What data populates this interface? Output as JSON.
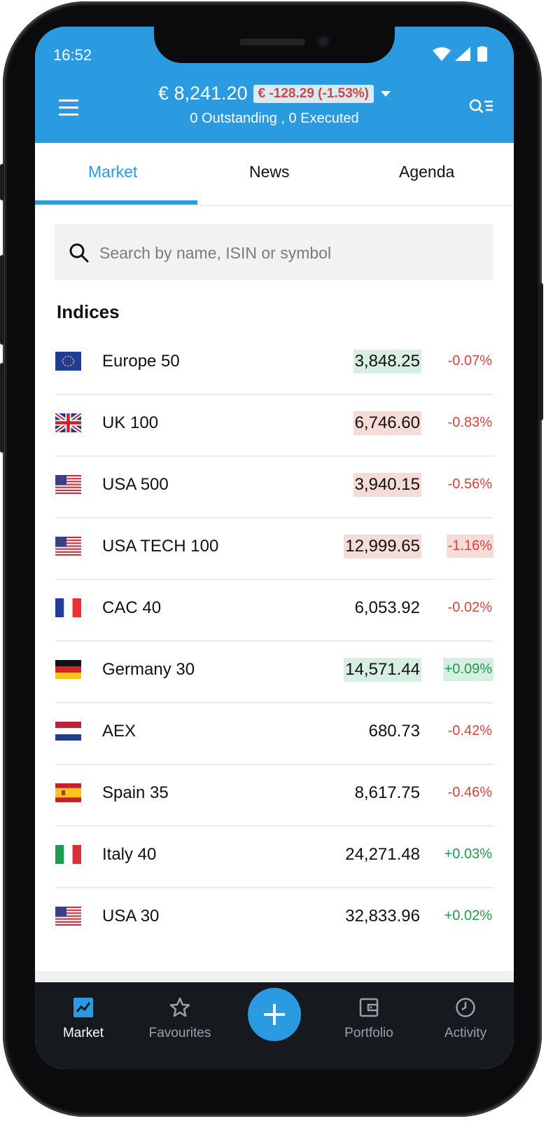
{
  "status_bar": {
    "time": "16:52"
  },
  "header": {
    "balance": "€ 8,241.20",
    "pl_badge": "€ -128.29 (-1.53%)",
    "orders_summary": "0 Outstanding , 0 Executed"
  },
  "tabs": [
    {
      "label": "Market",
      "active": true
    },
    {
      "label": "News",
      "active": false
    },
    {
      "label": "Agenda",
      "active": false
    }
  ],
  "search": {
    "placeholder": "Search by name, ISIN or symbol",
    "value": ""
  },
  "indices": {
    "title": "Indices",
    "rows": [
      {
        "name": "Europe 50",
        "flag": "eu-flag",
        "price": "3,848.25",
        "change": "-0.07%",
        "price_bg": "up",
        "change_bg": "none",
        "direction": "neg"
      },
      {
        "name": "UK 100",
        "flag": "uk-flag",
        "price": "6,746.60",
        "change": "-0.83%",
        "price_bg": "down",
        "change_bg": "none",
        "direction": "neg"
      },
      {
        "name": "USA 500",
        "flag": "us-flag",
        "price": "3,940.15",
        "change": "-0.56%",
        "price_bg": "down",
        "change_bg": "none",
        "direction": "neg"
      },
      {
        "name": "USA TECH 100",
        "flag": "us-flag",
        "price": "12,999.65",
        "change": "-1.16%",
        "price_bg": "down",
        "change_bg": "down",
        "direction": "neg"
      },
      {
        "name": "CAC 40",
        "flag": "france-flag",
        "price": "6,053.92",
        "change": "-0.02%",
        "price_bg": "none",
        "change_bg": "none",
        "direction": "neg"
      },
      {
        "name": "Germany 30",
        "flag": "germany-flag",
        "price": "14,571.44",
        "change": "+0.09%",
        "price_bg": "up",
        "change_bg": "up",
        "direction": "pos"
      },
      {
        "name": "AEX",
        "flag": "netherlands-flag",
        "price": "680.73",
        "change": "-0.42%",
        "price_bg": "none",
        "change_bg": "none",
        "direction": "neg"
      },
      {
        "name": "Spain 35",
        "flag": "spain-flag",
        "price": "8,617.75",
        "change": "-0.46%",
        "price_bg": "none",
        "change_bg": "none",
        "direction": "neg"
      },
      {
        "name": "Italy 40",
        "flag": "italy-flag",
        "price": "24,271.48",
        "change": "+0.03%",
        "price_bg": "none",
        "change_bg": "none",
        "direction": "pos"
      },
      {
        "name": "USA 30",
        "flag": "us-flag",
        "price": "32,833.96",
        "change": "+0.02%",
        "price_bg": "none",
        "change_bg": "none",
        "direction": "pos"
      }
    ]
  },
  "bottom_nav": [
    {
      "label": "Market",
      "icon": "chart-icon",
      "active": true
    },
    {
      "label": "Favourites",
      "icon": "star-icon",
      "active": false
    },
    {
      "label": "",
      "icon": "plus-icon",
      "active": false
    },
    {
      "label": "Portfolio",
      "icon": "wallet-icon",
      "active": false
    },
    {
      "label": "Activity",
      "icon": "clock-icon",
      "active": false
    }
  ],
  "colors": {
    "accent": "#2a9be0",
    "negative": "#d6453a",
    "positive": "#1f9a4e",
    "up_bg": "#d7efe2",
    "down_bg": "#f6dcd8",
    "nav_bg": "#16191e"
  }
}
